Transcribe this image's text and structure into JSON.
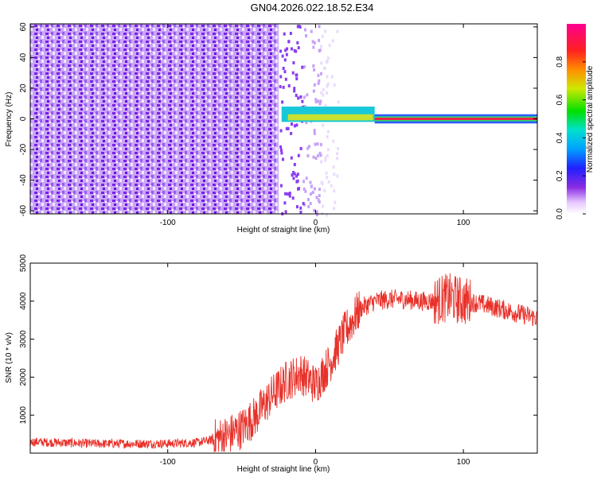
{
  "title": "GN04.2026.022.18.52.E34",
  "chart_data": [
    {
      "type": "heatmap",
      "xlabel": "Height of straight line (km)",
      "ylabel": "Frequency (Hz)",
      "xlim": [
        -193,
        150
      ],
      "ylim": [
        -62,
        62
      ],
      "xticks": [
        -100,
        0,
        100
      ],
      "yticks": [
        -60,
        -40,
        -20,
        0,
        20,
        40,
        60
      ],
      "colorbar": {
        "label": "Normalized spectral amplitude",
        "range": [
          0,
          1
        ],
        "ticks": [
          0.0,
          0.2,
          0.4,
          0.6,
          0.8
        ],
        "tick_labels": [
          "0.0",
          "0.2",
          "0.4",
          "0.6",
          "0.8"
        ]
      },
      "description_regions": [
        {
          "x_range": [
            -193,
            -25
          ],
          "y_range": [
            -62,
            62
          ],
          "amplitude": 0.15
        },
        {
          "x_range": [
            -25,
            15
          ],
          "y_range": [
            -62,
            62
          ],
          "amplitude": 0.05
        },
        {
          "x_range": [
            -23,
            40
          ],
          "y_range": [
            -2,
            8
          ],
          "amplitude": 0.6
        },
        {
          "x_range": [
            40,
            150
          ],
          "y_range": [
            -2,
            2
          ],
          "amplitude": 0.95
        }
      ],
      "grid": false
    },
    {
      "type": "line",
      "xlabel": "Height of straight line (km)",
      "ylabel": "SNR (10 * v/v)",
      "xlim": [
        -193,
        150
      ],
      "ylim": [
        0,
        5000
      ],
      "xticks": [
        -100,
        0,
        100
      ],
      "yticks": [
        1000,
        2000,
        3000,
        4000,
        5000
      ],
      "color": "#e8312a",
      "series": [
        {
          "x": [
            -193,
            -150,
            -100,
            -80,
            -70,
            -60,
            -50,
            -40,
            -30,
            -20,
            -10,
            0,
            10,
            20,
            30,
            40,
            50,
            60,
            70,
            80,
            90,
            100,
            110,
            120,
            130,
            140,
            150
          ],
          "values": [
            300,
            250,
            250,
            280,
            350,
            450,
            650,
            1000,
            1500,
            1900,
            2100,
            1800,
            2400,
            3200,
            3800,
            4000,
            4050,
            4050,
            4000,
            4000,
            4100,
            4000,
            3950,
            3850,
            3750,
            3650,
            3550
          ]
        }
      ],
      "grid": false
    }
  ]
}
